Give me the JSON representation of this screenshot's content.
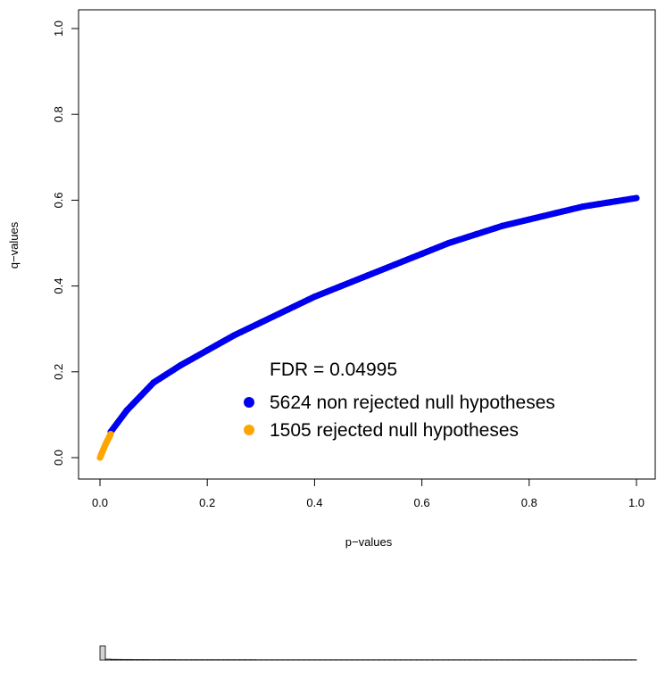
{
  "chart_data": [
    {
      "type": "scatter",
      "xlabel": "p−values",
      "ylabel": "q−values",
      "xlim": [
        0,
        1
      ],
      "ylim": [
        0,
        1
      ],
      "x_ticks": [
        "0.0",
        "0.2",
        "0.4",
        "0.6",
        "0.8",
        "1.0"
      ],
      "y_ticks": [
        "0.0",
        "0.2",
        "0.4",
        "0.6",
        "0.8",
        "1.0"
      ],
      "grid": false,
      "legend_placement": "bottom-right",
      "legend_title": "FDR = 0.04995",
      "series": [
        {
          "name": "5624 non rejected null hypotheses",
          "color": "#0000ee",
          "x": [
            0.02,
            0.05,
            0.1,
            0.15,
            0.2,
            0.25,
            0.3,
            0.35,
            0.4,
            0.45,
            0.5,
            0.55,
            0.6,
            0.65,
            0.7,
            0.75,
            0.8,
            0.85,
            0.9,
            0.95,
            1.0
          ],
          "y": [
            0.06,
            0.11,
            0.175,
            0.215,
            0.25,
            0.285,
            0.315,
            0.345,
            0.375,
            0.4,
            0.425,
            0.45,
            0.475,
            0.5,
            0.52,
            0.54,
            0.555,
            0.57,
            0.585,
            0.595,
            0.605
          ]
        },
        {
          "name": "1505 rejected null hypotheses",
          "color": "#ffa500",
          "x": [
            0.0,
            0.002,
            0.004,
            0.006,
            0.008,
            0.01,
            0.012,
            0.014,
            0.016,
            0.018,
            0.02
          ],
          "y": [
            0.0,
            0.006,
            0.012,
            0.018,
            0.024,
            0.03,
            0.035,
            0.04,
            0.045,
            0.05,
            0.055
          ]
        }
      ]
    },
    {
      "type": "bar",
      "title": "",
      "xlim": [
        0,
        1
      ],
      "bins": 100,
      "values": [
        200,
        13,
        10,
        9,
        8,
        8,
        7,
        7,
        7,
        6,
        6,
        6,
        6,
        6,
        5,
        5,
        5,
        5,
        5,
        5,
        5,
        5,
        5,
        5,
        5,
        5,
        5,
        5,
        5,
        4,
        4,
        4,
        4,
        4,
        4,
        4,
        4,
        4,
        4,
        4,
        4,
        4,
        4,
        4,
        4,
        4,
        4,
        4,
        4,
        4,
        4,
        4,
        4,
        4,
        4,
        4,
        4,
        4,
        4,
        4,
        4,
        4,
        4,
        4,
        4,
        4,
        4,
        4,
        4,
        4,
        4,
        4,
        4,
        4,
        4,
        4,
        4,
        4,
        4,
        4,
        4,
        4,
        4,
        4,
        4,
        4,
        4,
        4,
        4,
        4,
        4,
        4,
        4,
        4,
        4,
        4,
        4,
        4,
        4,
        4
      ],
      "ymax": 200,
      "fill_color": "#d3d3d3",
      "edge_color": "#000000"
    }
  ]
}
